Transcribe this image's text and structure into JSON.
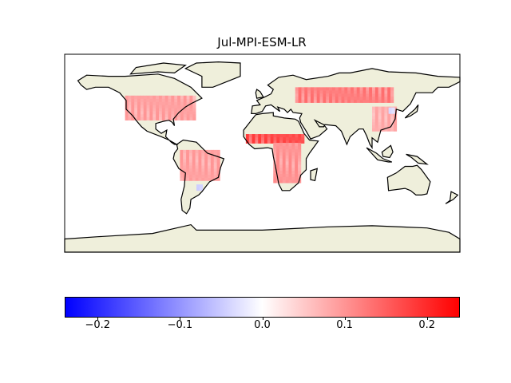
{
  "chart_data": {
    "type": "heatmap",
    "title": "Jul-MPI-ESM-LR",
    "projection": "equirectangular",
    "extent": {
      "lon": [
        -180,
        180
      ],
      "lat": [
        -90,
        90
      ]
    },
    "land_color": "#efefdb",
    "ocean_color": "#ffffff",
    "colormap": "bwr",
    "colorbar": {
      "range": [
        -0.24,
        0.24
      ],
      "ticks": [
        -0.2,
        -0.1,
        0.0,
        0.1,
        0.2
      ],
      "tick_labels": [
        "−0.2",
        "−0.1",
        "0.0",
        "0.1",
        "0.2"
      ],
      "orientation": "horizontal"
    },
    "anomaly_regions": [
      {
        "region": "North America",
        "lon": [
          -125,
          -62
        ],
        "lat": [
          30,
          52
        ],
        "value": 0.08
      },
      {
        "region": "South America",
        "lon": [
          -75,
          -40
        ],
        "lat": [
          -25,
          3
        ],
        "value": 0.08
      },
      {
        "region": "Sahel",
        "lon": [
          -15,
          38
        ],
        "lat": [
          9,
          15
        ],
        "value": 0.15
      },
      {
        "region": "Central/Southern Africa",
        "lon": [
          10,
          35
        ],
        "lat": [
          -27,
          9
        ],
        "value": 0.09
      },
      {
        "region": "Northern Eurasia",
        "lon": [
          30,
          118
        ],
        "lat": [
          46,
          58
        ],
        "value": 0.11
      },
      {
        "region": "East Asia",
        "lon": [
          100,
          122
        ],
        "lat": [
          20,
          42
        ],
        "value": 0.07
      },
      {
        "region": "East China",
        "lon": [
          115,
          120
        ],
        "lat": [
          36,
          40
        ],
        "value": -0.03
      },
      {
        "region": "La Plata",
        "lon": [
          -60,
          -56
        ],
        "lat": [
          -34,
          -30
        ],
        "value": -0.04
      }
    ]
  }
}
